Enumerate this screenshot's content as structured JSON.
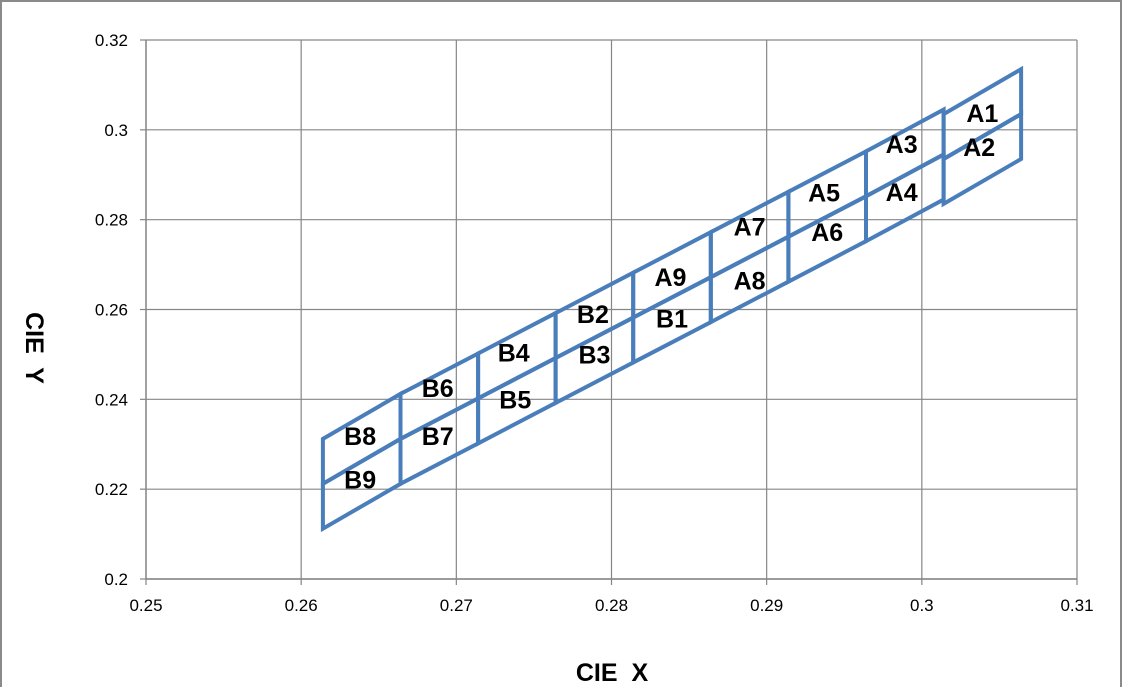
{
  "chart_data": {
    "type": "scatter",
    "title": "",
    "xlabel": "CIE  X",
    "ylabel": "CIE  Y",
    "xlim": [
      0.25,
      0.31
    ],
    "ylim": [
      0.2,
      0.32
    ],
    "xticks": [
      "0.25",
      "0.26",
      "0.27",
      "0.28",
      "0.29",
      "0.3",
      "0.31"
    ],
    "yticks": [
      "0.2",
      "0.22",
      "0.24",
      "0.26",
      "0.28",
      "0.3",
      "0.32"
    ],
    "grid": true,
    "legend": "none",
    "line_color": "#4a7ebb",
    "bins": [
      {
        "label": "A1",
        "polygon": [
          [
            0.3014,
            0.3035
          ],
          [
            0.3064,
            0.3135
          ],
          [
            0.3064,
            0.3035
          ],
          [
            0.3014,
            0.2935
          ]
        ],
        "label_at": [
          0.3039,
          0.3038
        ]
      },
      {
        "label": "A2",
        "polygon": [
          [
            0.3014,
            0.2935
          ],
          [
            0.3064,
            0.3035
          ],
          [
            0.3064,
            0.2935
          ],
          [
            0.3014,
            0.2835
          ]
        ],
        "label_at": [
          0.3037,
          0.2962
        ]
      },
      {
        "label": "A3",
        "polygon": [
          [
            0.2964,
            0.2952
          ],
          [
            0.3014,
            0.3045
          ],
          [
            0.3014,
            0.2945
          ],
          [
            0.2964,
            0.2852
          ]
        ],
        "label_at": [
          0.2987,
          0.2968
        ]
      },
      {
        "label": "A4",
        "polygon": [
          [
            0.2964,
            0.2852
          ],
          [
            0.3014,
            0.2945
          ],
          [
            0.3014,
            0.2845
          ],
          [
            0.2964,
            0.2752
          ]
        ],
        "label_at": [
          0.2987,
          0.2862
        ]
      },
      {
        "label": "A5",
        "polygon": [
          [
            0.2914,
            0.2862
          ],
          [
            0.2964,
            0.2952
          ],
          [
            0.2964,
            0.2852
          ],
          [
            0.2914,
            0.2762
          ]
        ],
        "label_at": [
          0.2937,
          0.286
        ]
      },
      {
        "label": "A6",
        "polygon": [
          [
            0.2914,
            0.2762
          ],
          [
            0.2964,
            0.2852
          ],
          [
            0.2964,
            0.2752
          ],
          [
            0.2914,
            0.2662
          ]
        ],
        "label_at": [
          0.2939,
          0.2773
        ]
      },
      {
        "label": "A7",
        "polygon": [
          [
            0.2864,
            0.2772
          ],
          [
            0.2914,
            0.2862
          ],
          [
            0.2914,
            0.2762
          ],
          [
            0.2864,
            0.2672
          ]
        ],
        "label_at": [
          0.2889,
          0.2785
        ]
      },
      {
        "label": "A8",
        "polygon": [
          [
            0.2864,
            0.2672
          ],
          [
            0.2914,
            0.2762
          ],
          [
            0.2914,
            0.2662
          ],
          [
            0.2864,
            0.2572
          ]
        ],
        "label_at": [
          0.2889,
          0.2665
        ]
      },
      {
        "label": "A9",
        "polygon": [
          [
            0.2814,
            0.2682
          ],
          [
            0.2864,
            0.2772
          ],
          [
            0.2864,
            0.2672
          ],
          [
            0.2814,
            0.2582
          ]
        ],
        "label_at": [
          0.2838,
          0.2672
        ]
      },
      {
        "label": "B1",
        "polygon": [
          [
            0.2814,
            0.2582
          ],
          [
            0.2864,
            0.2672
          ],
          [
            0.2864,
            0.2572
          ],
          [
            0.2814,
            0.2482
          ]
        ],
        "label_at": [
          0.2839,
          0.258
        ]
      },
      {
        "label": "B2",
        "polygon": [
          [
            0.2764,
            0.2592
          ],
          [
            0.2814,
            0.2682
          ],
          [
            0.2814,
            0.2582
          ],
          [
            0.2764,
            0.2492
          ]
        ],
        "label_at": [
          0.2788,
          0.259
        ]
      },
      {
        "label": "B3",
        "polygon": [
          [
            0.2764,
            0.2492
          ],
          [
            0.2814,
            0.2582
          ],
          [
            0.2814,
            0.2482
          ],
          [
            0.2764,
            0.2392
          ]
        ],
        "label_at": [
          0.2789,
          0.25
        ]
      },
      {
        "label": "B4",
        "polygon": [
          [
            0.2714,
            0.2502
          ],
          [
            0.2764,
            0.2592
          ],
          [
            0.2764,
            0.2492
          ],
          [
            0.2714,
            0.2402
          ]
        ],
        "label_at": [
          0.2737,
          0.2504
        ]
      },
      {
        "label": "B5",
        "polygon": [
          [
            0.2714,
            0.2402
          ],
          [
            0.2764,
            0.2492
          ],
          [
            0.2764,
            0.2392
          ],
          [
            0.2714,
            0.2302
          ]
        ],
        "label_at": [
          0.2738,
          0.24
        ]
      },
      {
        "label": "B6",
        "polygon": [
          [
            0.2664,
            0.2412
          ],
          [
            0.2714,
            0.2502
          ],
          [
            0.2714,
            0.2402
          ],
          [
            0.2664,
            0.2312
          ]
        ],
        "label_at": [
          0.2688,
          0.2425
        ]
      },
      {
        "label": "B7",
        "polygon": [
          [
            0.2664,
            0.2312
          ],
          [
            0.2714,
            0.2402
          ],
          [
            0.2714,
            0.2302
          ],
          [
            0.2664,
            0.2212
          ]
        ],
        "label_at": [
          0.2688,
          0.2318
        ]
      },
      {
        "label": "B8",
        "polygon": [
          [
            0.2614,
            0.2312
          ],
          [
            0.2664,
            0.2412
          ],
          [
            0.2664,
            0.2312
          ],
          [
            0.2614,
            0.2212
          ]
        ],
        "label_at": [
          0.2638,
          0.2318
        ]
      },
      {
        "label": "B9",
        "polygon": [
          [
            0.2614,
            0.2212
          ],
          [
            0.2664,
            0.2312
          ],
          [
            0.2664,
            0.2212
          ],
          [
            0.2614,
            0.2112
          ]
        ],
        "label_at": [
          0.2638,
          0.2222
        ]
      }
    ]
  }
}
